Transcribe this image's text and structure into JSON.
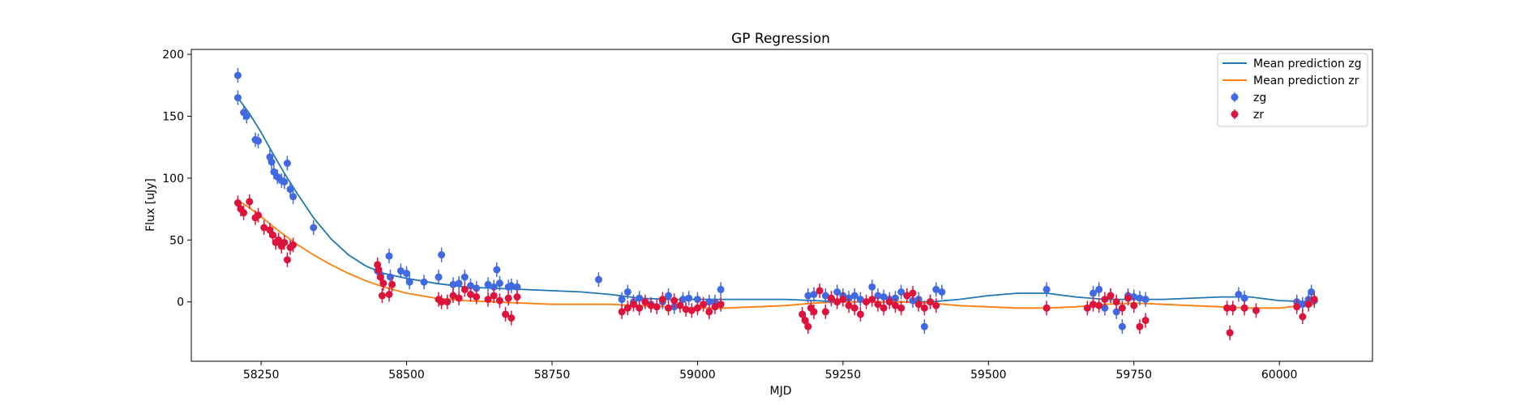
{
  "chart_data": {
    "type": "scatter",
    "title": "GP Regression",
    "xlabel": "MJD",
    "ylabel": "Flux [uJy]",
    "xlim": [
      58130,
      60160
    ],
    "ylim": [
      -48,
      204
    ],
    "xticks": [
      58250,
      58500,
      58750,
      59000,
      59250,
      59500,
      59750,
      60000
    ],
    "yticks": [
      0,
      50,
      100,
      150,
      200
    ],
    "grid": false,
    "legend_position": "top-right",
    "legend": [
      "Mean prediction zg",
      "Mean prediction zr",
      "zg",
      "zr"
    ],
    "lines": [
      {
        "name": "Mean prediction zg",
        "color": "#1f77b4",
        "x": [
          58210,
          58230,
          58250,
          58270,
          58290,
          58310,
          58340,
          58370,
          58400,
          58430,
          58460,
          58500,
          58550,
          58600,
          58650,
          58700,
          58750,
          58800,
          58850,
          58900,
          58950,
          59000,
          59050,
          59100,
          59150,
          59200,
          59250,
          59300,
          59350,
          59400,
          59450,
          59500,
          59550,
          59600,
          59650,
          59700,
          59750,
          59800,
          59850,
          59900,
          59950,
          60000,
          60060
        ],
        "y": [
          165,
          152,
          137,
          120,
          104,
          89,
          68,
          51,
          38,
          29,
          23,
          19,
          15,
          12,
          11,
          10,
          9,
          8,
          6,
          3,
          2,
          2,
          2,
          2,
          2,
          1,
          0,
          0,
          0,
          0,
          2,
          5,
          7,
          7,
          4,
          2,
          2,
          2,
          3,
          4,
          4,
          1,
          0
        ]
      },
      {
        "name": "Mean prediction zr",
        "color": "#ff7f0e",
        "x": [
          58210,
          58230,
          58250,
          58270,
          58290,
          58310,
          58340,
          58370,
          58400,
          58430,
          58460,
          58500,
          58550,
          58600,
          58650,
          58700,
          58750,
          58800,
          58850,
          58900,
          58950,
          59000,
          59050,
          59100,
          59150,
          59200,
          59250,
          59300,
          59350,
          59400,
          59450,
          59500,
          59550,
          59600,
          59650,
          59700,
          59750,
          59800,
          59850,
          59900,
          59950,
          60000,
          60060
        ],
        "y": [
          82,
          76,
          69,
          61,
          54,
          47,
          38,
          30,
          23,
          17,
          12,
          7,
          3,
          1,
          0,
          -1,
          -2,
          -2,
          -2,
          -3,
          -4,
          -5,
          -5,
          -4,
          -3,
          -1,
          0,
          0,
          0,
          -1,
          -3,
          -4,
          -5,
          -5,
          -4,
          -2,
          -1,
          -2,
          -3,
          -4,
          -5,
          -5,
          -2
        ]
      }
    ],
    "series": [
      {
        "name": "zg",
        "color": "#4169e1",
        "x": [
          58210,
          58210,
          58220,
          58225,
          58240,
          58245,
          58265,
          58268,
          58272,
          58278,
          58285,
          58290,
          58295,
          58300,
          58305,
          58340,
          58450,
          58455,
          58470,
          58472,
          58490,
          58500,
          58505,
          58530,
          58555,
          58560,
          58580,
          58590,
          58600,
          58610,
          58620,
          58640,
          58650,
          58655,
          58660,
          58675,
          58680,
          58690,
          58830,
          58870,
          58880,
          58890,
          58900,
          58920,
          58940,
          58950,
          58960,
          58975,
          58985,
          59000,
          59020,
          59030,
          59040,
          59190,
          59200,
          59220,
          59230,
          59240,
          59250,
          59260,
          59270,
          59280,
          59300,
          59310,
          59320,
          59330,
          59340,
          59350,
          59360,
          59370,
          59380,
          59390,
          59400,
          59410,
          59420,
          59600,
          59680,
          59690,
          59700,
          59710,
          59720,
          59730,
          59740,
          59750,
          59760,
          59770,
          59930,
          59940,
          60030,
          60040,
          60050,
          60055,
          60060
        ],
        "y": [
          183,
          165,
          153,
          150,
          131,
          130,
          117,
          113,
          105,
          101,
          98,
          97,
          112,
          91,
          85,
          60,
          25,
          22,
          37,
          20,
          25,
          23,
          16,
          16,
          20,
          38,
          14,
          15,
          20,
          13,
          11,
          14,
          12,
          26,
          15,
          12,
          13,
          12,
          18,
          2,
          8,
          0,
          3,
          -2,
          0,
          5,
          -4,
          2,
          3,
          2,
          0,
          0,
          10,
          5,
          6,
          5,
          2,
          8,
          5,
          3,
          5,
          2,
          12,
          5,
          4,
          2,
          3,
          8,
          5,
          1,
          2,
          -20,
          0,
          10,
          8,
          10,
          7,
          10,
          -5,
          5,
          -8,
          -20,
          5,
          4,
          3,
          2,
          6,
          3,
          0,
          -2,
          2,
          8,
          1
        ]
      },
      {
        "name": "zr",
        "color": "#dc143c",
        "x": [
          58210,
          58215,
          58220,
          58230,
          58240,
          58245,
          58255,
          58265,
          58270,
          58275,
          58280,
          58285,
          58290,
          58295,
          58300,
          58305,
          58450,
          58452,
          58455,
          58458,
          58460,
          58470,
          58475,
          58555,
          58560,
          58570,
          58580,
          58590,
          58600,
          58610,
          58620,
          58640,
          58650,
          58660,
          58670,
          58675,
          58680,
          58690,
          58870,
          58880,
          58890,
          58900,
          58910,
          58920,
          58930,
          58940,
          58950,
          58960,
          58970,
          58980,
          58990,
          59000,
          59010,
          59020,
          59030,
          59040,
          59180,
          59185,
          59190,
          59195,
          59200,
          59210,
          59220,
          59230,
          59240,
          59250,
          59260,
          59270,
          59280,
          59290,
          59300,
          59310,
          59320,
          59330,
          59340,
          59350,
          59360,
          59370,
          59380,
          59390,
          59400,
          59410,
          59600,
          59670,
          59680,
          59690,
          59700,
          59710,
          59720,
          59730,
          59740,
          59750,
          59760,
          59770,
          59910,
          59915,
          59920,
          59940,
          59960,
          60030,
          60040,
          60050,
          60060
        ],
        "y": [
          80,
          75,
          72,
          81,
          68,
          70,
          60,
          58,
          54,
          48,
          50,
          45,
          48,
          34,
          44,
          46,
          30,
          26,
          20,
          5,
          15,
          6,
          14,
          2,
          0,
          0,
          5,
          3,
          10,
          6,
          4,
          2,
          5,
          1,
          -10,
          3,
          -13,
          4,
          -8,
          -5,
          -2,
          -5,
          0,
          -3,
          -4,
          2,
          -5,
          1,
          -3,
          -6,
          -7,
          -5,
          -2,
          -8,
          -4,
          -2,
          -10,
          -15,
          -20,
          -5,
          -8,
          9,
          -8,
          3,
          0,
          2,
          -3,
          -5,
          -10,
          0,
          2,
          -2,
          -5,
          0,
          -3,
          -5,
          5,
          7,
          -2,
          -5,
          0,
          -3,
          -5,
          -5,
          -2,
          -3,
          2,
          5,
          0,
          -5,
          3,
          -3,
          -20,
          -15,
          -5,
          -25,
          -5,
          -5,
          -7,
          -4,
          -12,
          -2,
          2
        ]
      }
    ]
  }
}
